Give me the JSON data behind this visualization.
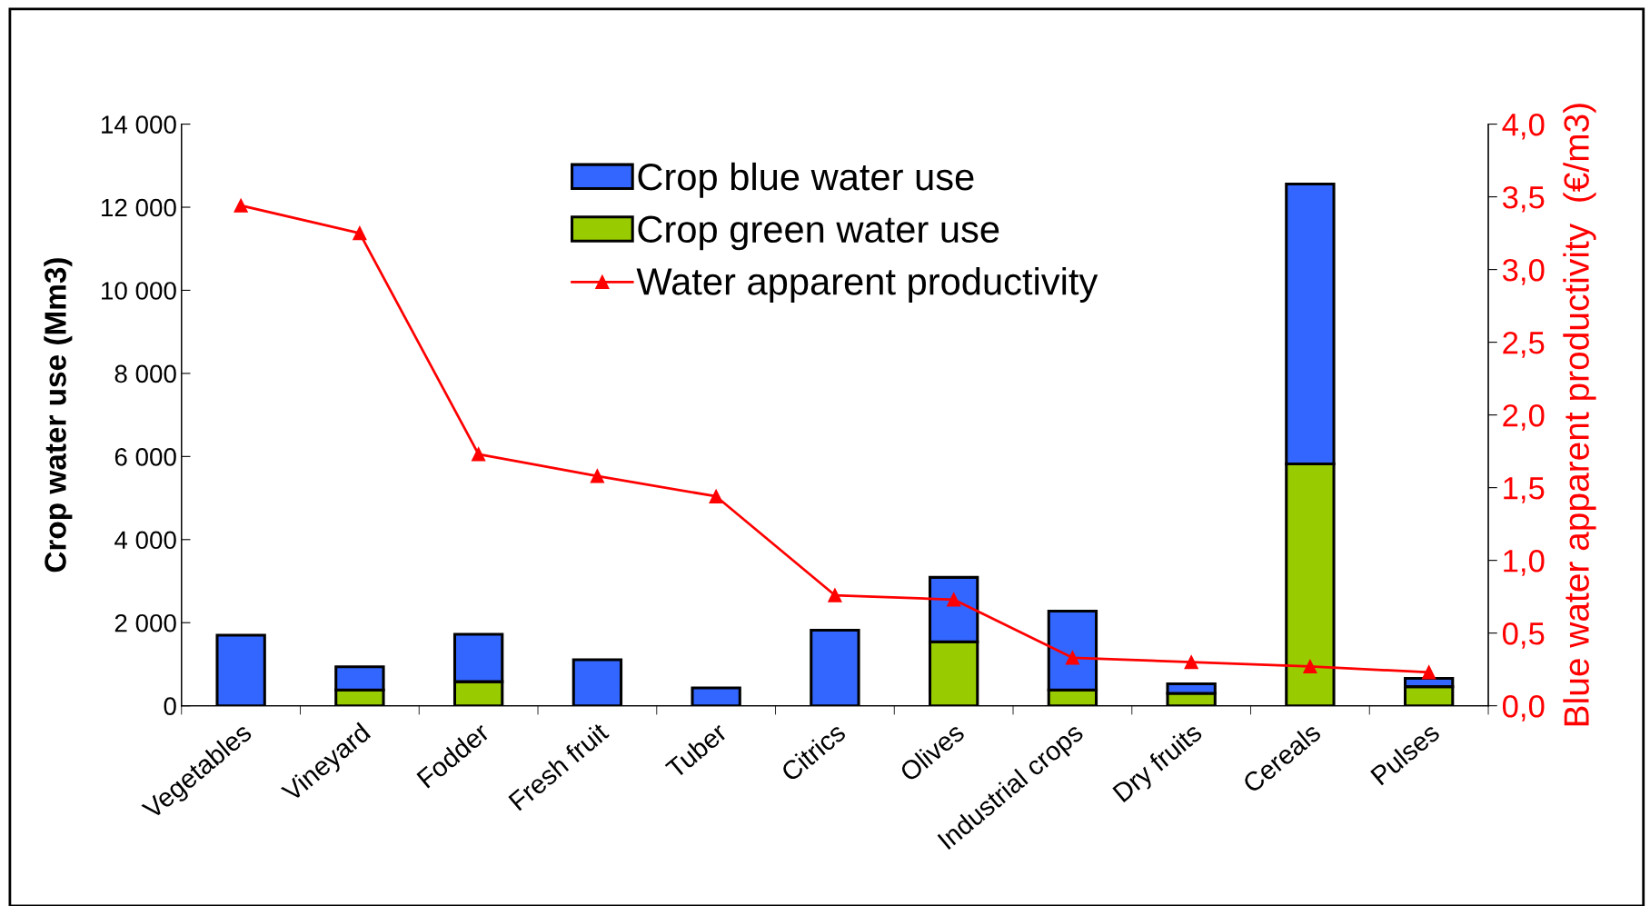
{
  "chart_data": {
    "type": "bar",
    "stacked": true,
    "ylabel": "Crop water use (Mm3)",
    "y2label": "Blue water apparent productivity  (€/m3)",
    "categories": [
      "Vegetables",
      "Vineyard",
      "Fodder",
      "Fresh fruit",
      "Tuber",
      "Citrics",
      "Olives",
      "Industrial crops",
      "Dry fruits",
      "Cereals",
      "Pulses"
    ],
    "series": [
      {
        "name": "Crop green water use",
        "color": "#99cc00",
        "values": [
          null,
          380,
          580,
          null,
          null,
          null,
          1540,
          380,
          300,
          5820,
          460
        ]
      },
      {
        "name": "Crop blue water use",
        "color": "#3366ff",
        "values": [
          1700,
          560,
          1140,
          1110,
          430,
          1820,
          1550,
          1900,
          230,
          6740,
          200
        ]
      },
      {
        "name": "Water apparent productivity",
        "type": "line",
        "axis": "y2",
        "color": "#ff0000",
        "marker": "triangle",
        "values": [
          3.44,
          3.25,
          1.73,
          1.58,
          1.44,
          0.76,
          0.73,
          0.33,
          0.3,
          0.27,
          0.23
        ]
      }
    ],
    "ylim": [
      0,
      14000
    ],
    "yticks": [
      {
        "value": 0,
        "label": "0"
      },
      {
        "value": 2000,
        "label": "2 000"
      },
      {
        "value": 4000,
        "label": "4 000"
      },
      {
        "value": 6000,
        "label": "6 000"
      },
      {
        "value": 8000,
        "label": "8 000"
      },
      {
        "value": 10000,
        "label": "10 000"
      },
      {
        "value": 12000,
        "label": "12 000"
      },
      {
        "value": 14000,
        "label": "14 000"
      }
    ],
    "y2lim": [
      0,
      4
    ],
    "y2ticks": [
      {
        "value": 0,
        "label": "0,0"
      },
      {
        "value": 0.5,
        "label": "0,5"
      },
      {
        "value": 1,
        "label": "1,0"
      },
      {
        "value": 1.5,
        "label": "1,5"
      },
      {
        "value": 2,
        "label": "2,0"
      },
      {
        "value": 2.5,
        "label": "2,5"
      },
      {
        "value": 3,
        "label": "3,0"
      },
      {
        "value": 3.5,
        "label": "3,5"
      },
      {
        "value": 4,
        "label": "4,0"
      }
    ],
    "grid": false,
    "legend": "top"
  }
}
